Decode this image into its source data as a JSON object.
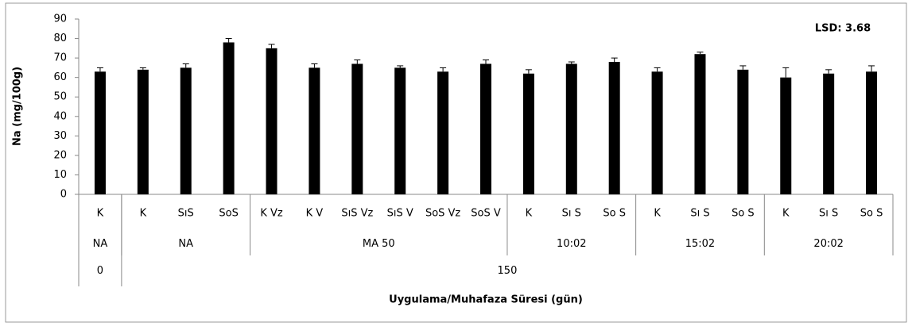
{
  "chart_data": {
    "type": "bar",
    "categories": [
      "K",
      "K",
      "SıS",
      "SoS",
      "K Vz",
      "K V",
      "SıS Vz",
      "SıS V",
      "SoS Vz",
      "SoS V",
      "K",
      "Sı S",
      "So S",
      "K",
      "Sı S",
      "So S",
      "K",
      "Sı S",
      "So S"
    ],
    "group_labels": [
      "NA",
      "NA",
      null,
      null,
      "MA 50",
      null,
      null,
      null,
      null,
      null,
      "10:02",
      null,
      null,
      "15:02",
      null,
      null,
      "20:02",
      null,
      null
    ],
    "period_labels": [
      "0",
      "150",
      null,
      null,
      null,
      null,
      null,
      null,
      null,
      null,
      null,
      null,
      null,
      null,
      null,
      null,
      null,
      null,
      null
    ],
    "values": [
      63,
      64,
      65,
      78,
      75,
      65,
      67,
      65,
      63,
      67,
      62,
      67,
      68,
      63,
      72,
      64,
      60,
      62,
      63
    ],
    "errors": [
      2,
      1,
      2,
      2,
      2,
      2,
      2,
      1,
      2,
      2,
      2,
      1,
      2,
      2,
      1,
      2,
      5,
      2,
      3
    ],
    "color": "#000000",
    "ylim": [
      0,
      90
    ],
    "yticks": [
      0,
      10,
      20,
      30,
      40,
      50,
      60,
      70,
      80,
      90
    ],
    "y_label": "Na (mg/100g)",
    "x_label": "Uygulama/Muhafaza Süresi (gün)",
    "annotation": "LSD: 3.68"
  }
}
